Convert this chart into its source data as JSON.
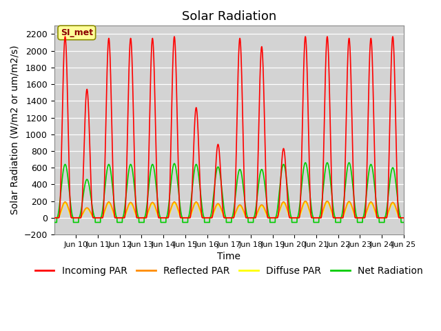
{
  "title": "Solar Radiation",
  "xlabel": "Time",
  "ylabel": "Solar Radiation (W/m2 or um/m2/s)",
  "ylim": [
    -200,
    2300
  ],
  "yticks": [
    -200,
    0,
    200,
    400,
    600,
    800,
    1000,
    1200,
    1400,
    1600,
    1800,
    2000,
    2200
  ],
  "xlim_start": 9,
  "xlim_end": 25,
  "xtick_positions": [
    10,
    11,
    12,
    13,
    14,
    15,
    16,
    17,
    18,
    19,
    20,
    21,
    22,
    23,
    24,
    25
  ],
  "xtick_labels": [
    "Jun 10",
    "Jun 11",
    "Jun 12",
    "Jun 13",
    "Jun 14",
    "Jun 15",
    "Jun 16",
    "Jun 17",
    "Jun 18",
    "Jun 19",
    "Jun 20",
    "Jun 21",
    "Jun 22",
    "Jun 23",
    "Jun 24",
    "Jun 25"
  ],
  "legend_label": "SI_met",
  "incoming_color": "#FF0000",
  "reflected_color": "#FF8C00",
  "diffuse_color": "#FFFF00",
  "net_color": "#00CC00",
  "background_color": "#D3D3D3",
  "title_fontsize": 13,
  "axis_fontsize": 10,
  "legend_fontsize": 10,
  "line_width": 1.2,
  "peaks_incoming": [
    2170,
    1540,
    2150,
    2150,
    2150,
    2170,
    1320,
    880,
    2150,
    2050,
    830,
    2170,
    2170,
    2150,
    2150,
    2170
  ],
  "peaks_net": [
    640,
    460,
    640,
    640,
    640,
    650,
    640,
    610,
    580,
    580,
    640,
    660,
    660,
    660,
    640,
    600
  ],
  "peaks_reflected": [
    190,
    120,
    190,
    185,
    185,
    190,
    190,
    170,
    155,
    155,
    190,
    200,
    200,
    195,
    190,
    185
  ],
  "peaks_diffuse": [
    175,
    110,
    175,
    170,
    170,
    175,
    175,
    155,
    140,
    140,
    175,
    185,
    185,
    180,
    175,
    170
  ],
  "n_days": 16,
  "day_start": 9
}
